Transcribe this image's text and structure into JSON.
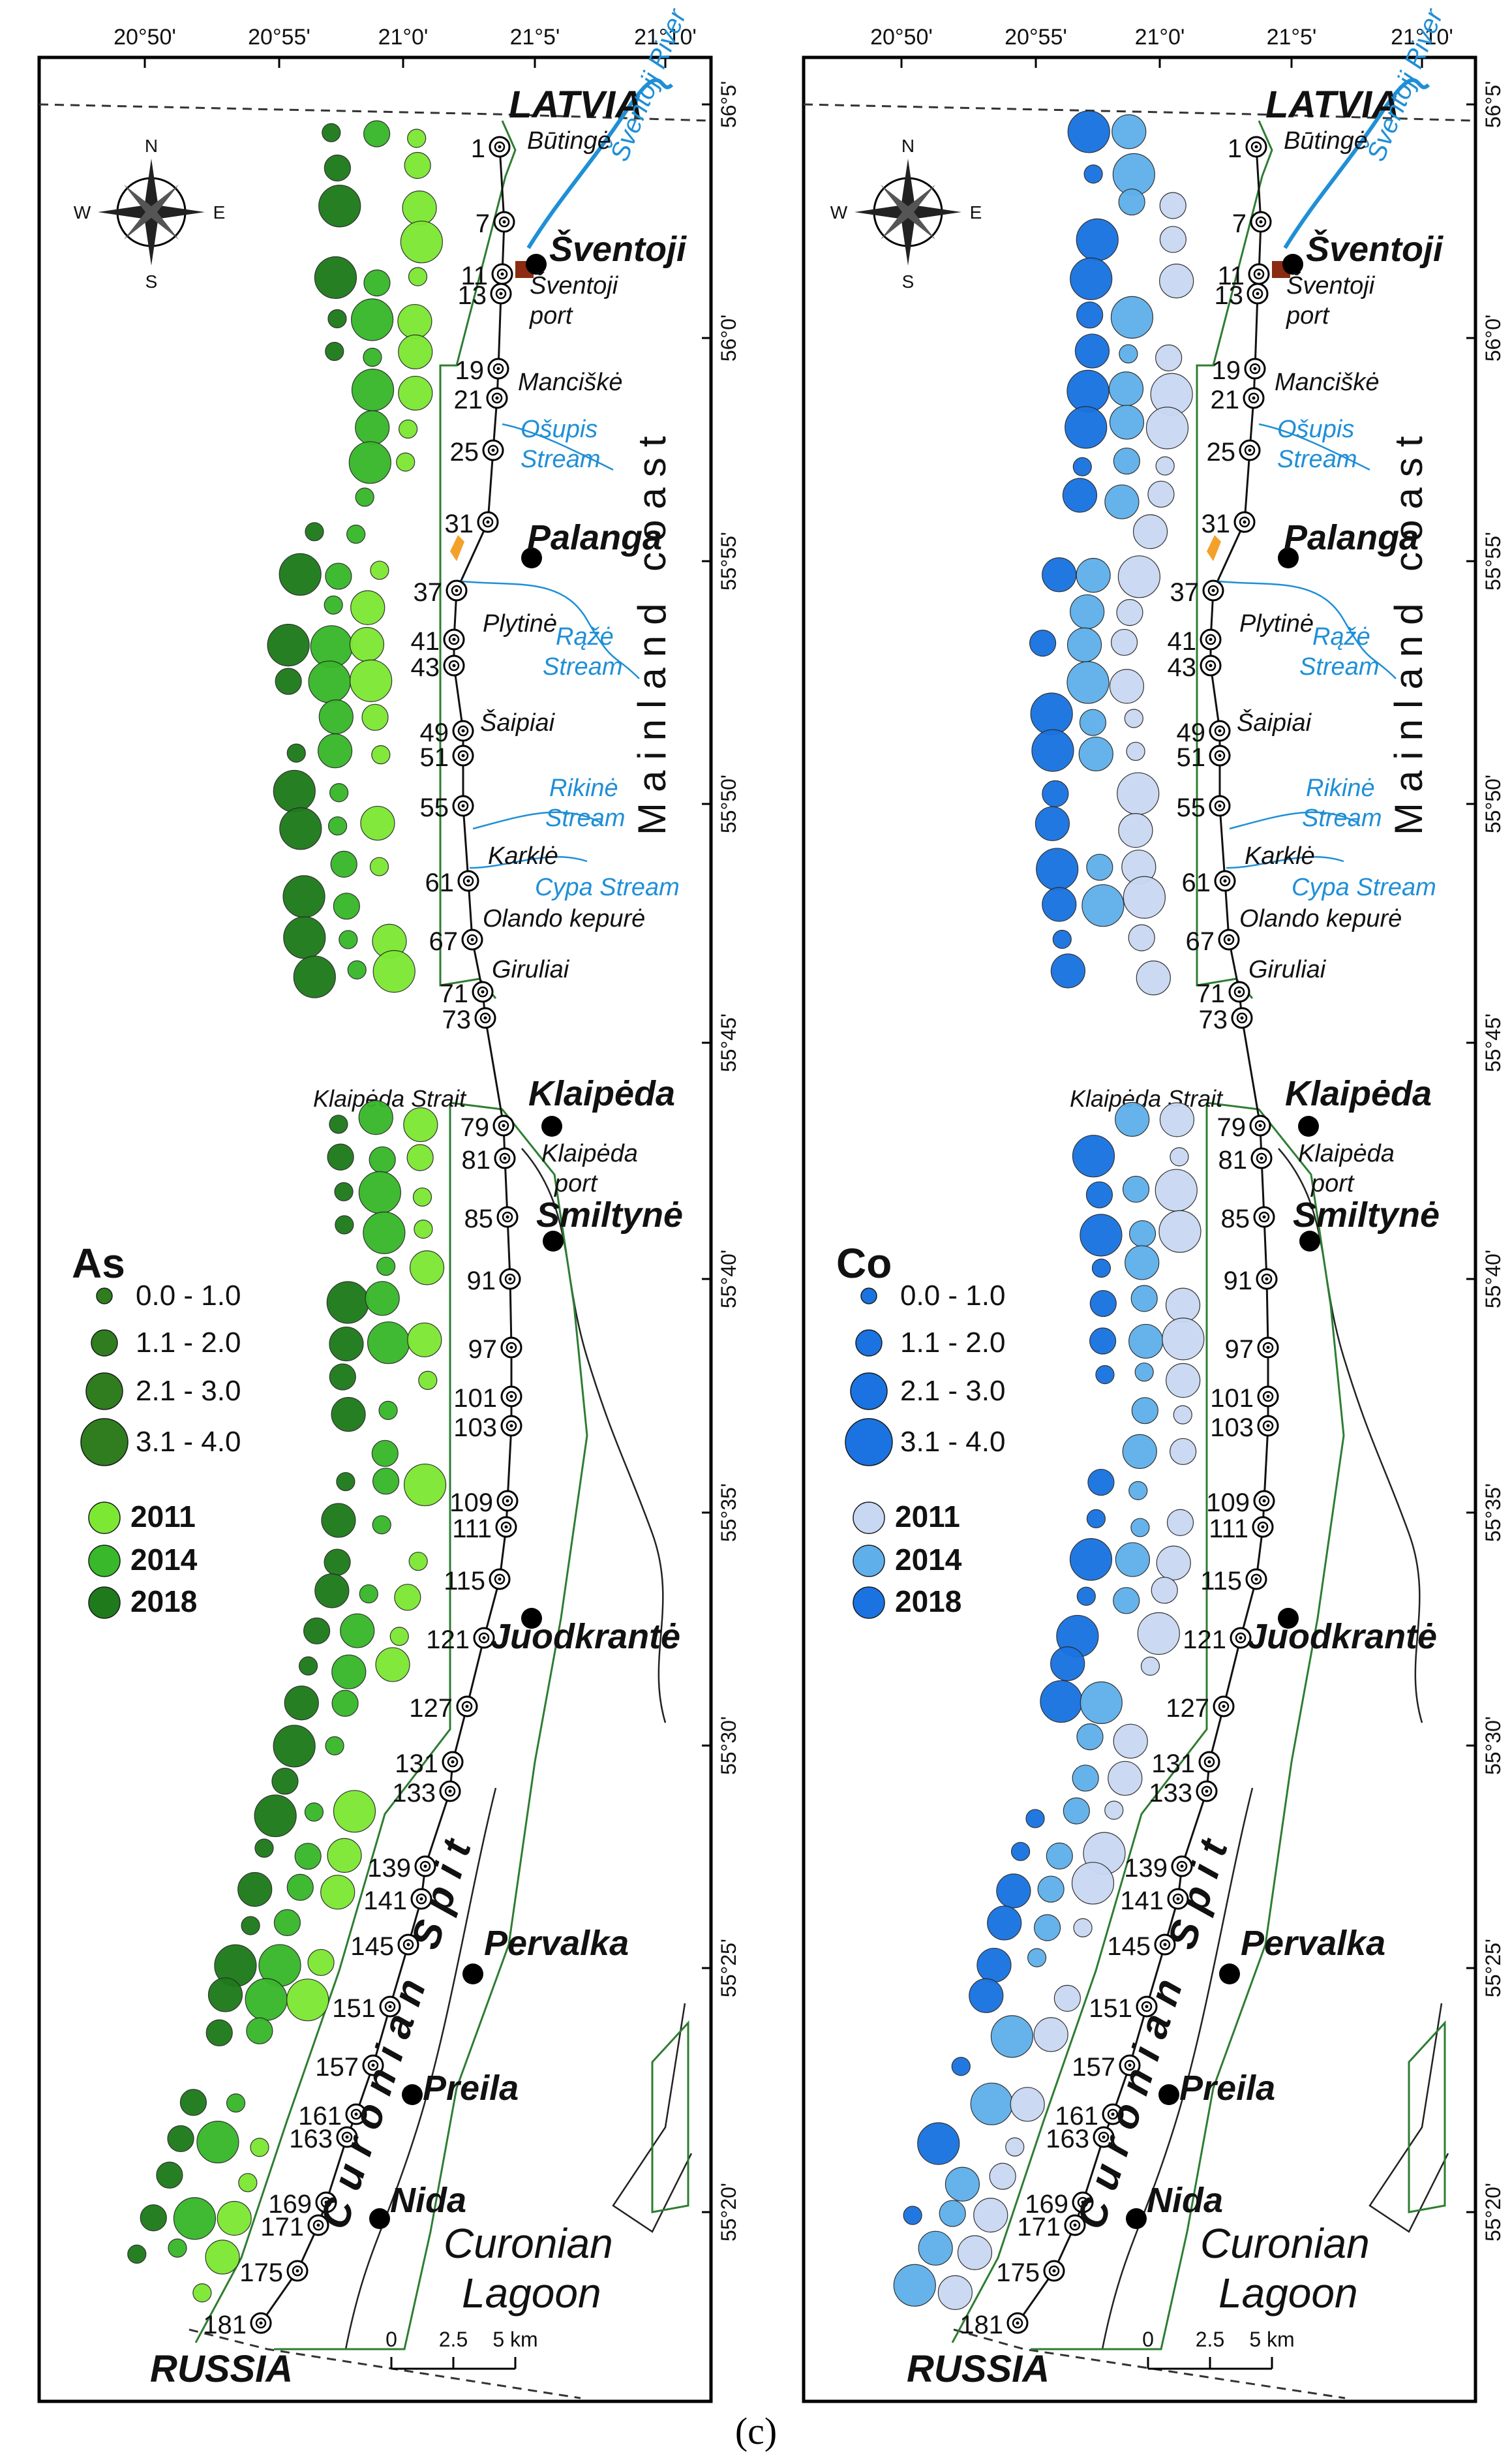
{
  "figure_caption": "(c)",
  "longitudes": [
    "20°50'",
    "20°55'",
    "21°0'",
    "21°5'",
    "21°10'"
  ],
  "latitudes": [
    "56°5'",
    "56°0'",
    "55°55'",
    "55°50'",
    "55°45'",
    "55°40'",
    "55°35'",
    "55°30'",
    "55°25'",
    "55°20'"
  ],
  "compass": {
    "n": "N",
    "s": "S",
    "e": "E",
    "w": "W"
  },
  "colors": {
    "as_2011": "#7de834",
    "as_2014": "#38b82a",
    "as_2018": "#1f7a1c",
    "co_2011": "#c9d8f2",
    "co_2014": "#5fb0ea",
    "co_2018": "#1a73e0",
    "river": "#1f8fd6",
    "park_boundary": "#2e7d32"
  },
  "places": {
    "latvia": "LATVIA",
    "russia": "RUSSIA",
    "butinge": "Būtingė",
    "sventoji_river": "Šventoji River",
    "sventoji": "Šventoji",
    "sventoji_port": "Šventoji port",
    "manciske": "Manciškė",
    "osupis_stream": "Ošupis Stream",
    "palanga": "Palanga",
    "plytine": "Plytinė",
    "raze_stream": "Rąžė Stream",
    "saipiai": "Šaipiai",
    "rikine_stream": "Rikinė Stream",
    "karkle": "Karklė",
    "cypa_stream": "Cypa Stream",
    "olando_kepure": "Olando kepurė",
    "giruliai": "Giruliai",
    "klaipeda_strait": "Klaipėda Strait",
    "klaipeda": "Klaipėda",
    "klaipeda_port": "Klaipėda port",
    "smiltyne": "Smiltynė",
    "juodkrante": "Juodkrantė",
    "curonian_spit": "Curonian Spit",
    "pervalka": "Pervalka",
    "preila": "Preila",
    "nida": "Nida",
    "curonian_lagoon": "Curonian Lagoon",
    "mainland_coast": "Mainland coast"
  },
  "stations": [
    "1",
    "7",
    "11",
    "13",
    "19",
    "21",
    "25",
    "31",
    "37",
    "41",
    "43",
    "49",
    "51",
    "55",
    "61",
    "67",
    "71",
    "73",
    "79",
    "81",
    "85",
    "91",
    "97",
    "101",
    "103",
    "109",
    "111",
    "115",
    "121",
    "127",
    "131",
    "133",
    "139",
    "141",
    "145",
    "151",
    "157",
    "161",
    "163",
    "169",
    "171",
    "175",
    "181"
  ],
  "scale_bar": {
    "labels": [
      "0",
      "2.5",
      "5 km"
    ]
  },
  "legend_as": {
    "title": "As",
    "classes": [
      "0.0 - 1.0",
      "1.1 - 2.0",
      "2.1 - 3.0",
      "3.1 - 4.0"
    ],
    "years": [
      "2011",
      "2014",
      "2018"
    ]
  },
  "legend_co": {
    "title": "Co",
    "classes": [
      "0.0 - 1.0",
      "1.1 - 2.0",
      "2.1 - 3.0",
      "3.1 - 4.0"
    ],
    "years": [
      "2011",
      "2014",
      "2018"
    ]
  }
}
